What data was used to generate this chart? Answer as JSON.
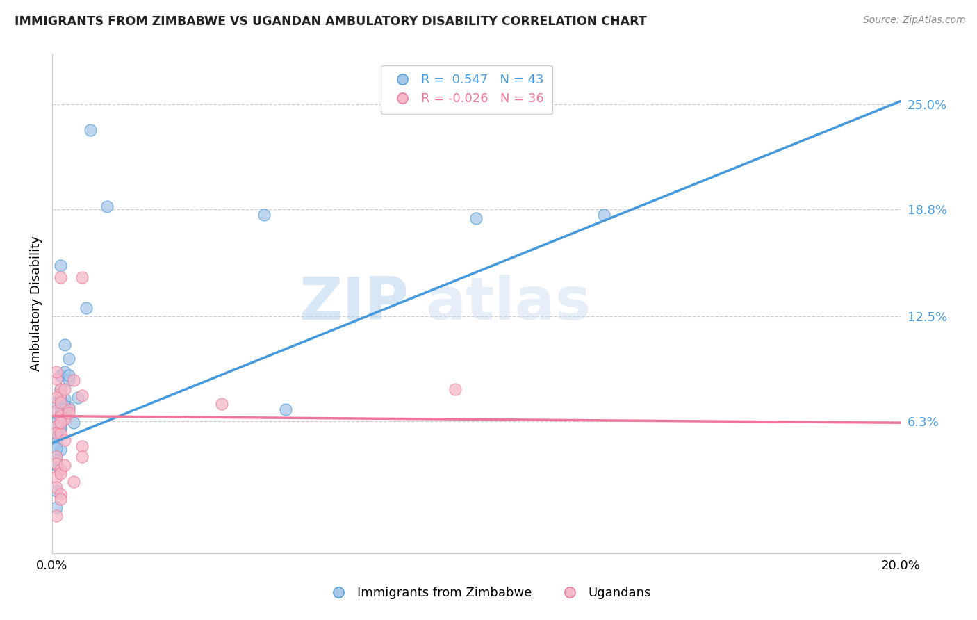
{
  "title": "IMMIGRANTS FROM ZIMBABWE VS UGANDAN AMBULATORY DISABILITY CORRELATION CHART",
  "source": "Source: ZipAtlas.com",
  "ylabel_label": "Ambulatory Disability",
  "right_yticks": [
    "6.3%",
    "12.5%",
    "18.8%",
    "25.0%"
  ],
  "right_ytick_vals": [
    0.063,
    0.125,
    0.188,
    0.25
  ],
  "xlim": [
    0.0,
    0.2
  ],
  "ylim": [
    -0.015,
    0.28
  ],
  "legend1_r": " 0.547",
  "legend1_n": "43",
  "legend2_r": "-0.026",
  "legend2_n": "36",
  "blue_color": "#a8c8e8",
  "pink_color": "#f4b8c8",
  "line_blue": "#4499dd",
  "line_pink": "#ee7799",
  "watermark_zip": "ZIP",
  "watermark_atlas": "atlas",
  "legend_label1": "Immigrants from Zimbabwe",
  "legend_label2": "Ugandans",
  "blue_scatter_x": [
    0.009,
    0.013,
    0.002,
    0.002,
    0.003,
    0.003,
    0.001,
    0.001,
    0.004,
    0.002,
    0.003,
    0.002,
    0.004,
    0.002,
    0.001,
    0.002,
    0.001,
    0.001,
    0.001,
    0.002,
    0.003,
    0.004,
    0.002,
    0.003,
    0.004,
    0.006,
    0.005,
    0.008,
    0.001,
    0.001,
    0.001,
    0.002,
    0.002,
    0.001,
    0.001,
    0.001,
    0.05,
    0.055,
    0.1,
    0.13,
    0.001,
    0.001,
    0.002
  ],
  "blue_scatter_y": [
    0.235,
    0.19,
    0.155,
    0.09,
    0.108,
    0.092,
    0.074,
    0.068,
    0.087,
    0.077,
    0.076,
    0.082,
    0.071,
    0.065,
    0.06,
    0.066,
    0.062,
    0.056,
    0.054,
    0.059,
    0.072,
    0.09,
    0.077,
    0.07,
    0.1,
    0.077,
    0.062,
    0.13,
    0.037,
    0.043,
    0.053,
    0.06,
    0.046,
    0.04,
    0.05,
    0.012,
    0.185,
    0.07,
    0.183,
    0.185,
    0.022,
    0.047,
    0.067
  ],
  "pink_scatter_x": [
    0.002,
    0.007,
    0.001,
    0.001,
    0.002,
    0.002,
    0.003,
    0.004,
    0.001,
    0.001,
    0.002,
    0.002,
    0.003,
    0.004,
    0.001,
    0.001,
    0.002,
    0.002,
    0.007,
    0.005,
    0.003,
    0.007,
    0.001,
    0.001,
    0.002,
    0.095,
    0.04,
    0.001,
    0.002,
    0.001,
    0.002,
    0.003,
    0.007,
    0.005,
    0.002,
    0.001
  ],
  "pink_scatter_y": [
    0.148,
    0.148,
    0.088,
    0.092,
    0.082,
    0.079,
    0.082,
    0.07,
    0.077,
    0.069,
    0.066,
    0.074,
    0.064,
    0.068,
    0.06,
    0.056,
    0.056,
    0.062,
    0.078,
    0.087,
    0.052,
    0.048,
    0.042,
    0.038,
    0.034,
    0.082,
    0.073,
    0.03,
    0.032,
    0.024,
    0.02,
    0.037,
    0.042,
    0.027,
    0.017,
    0.007
  ],
  "blue_line_x": [
    0.0,
    0.2
  ],
  "blue_line_y": [
    0.05,
    0.252
  ],
  "pink_line_x": [
    0.0,
    0.2
  ],
  "pink_line_y": [
    0.066,
    0.062
  ]
}
